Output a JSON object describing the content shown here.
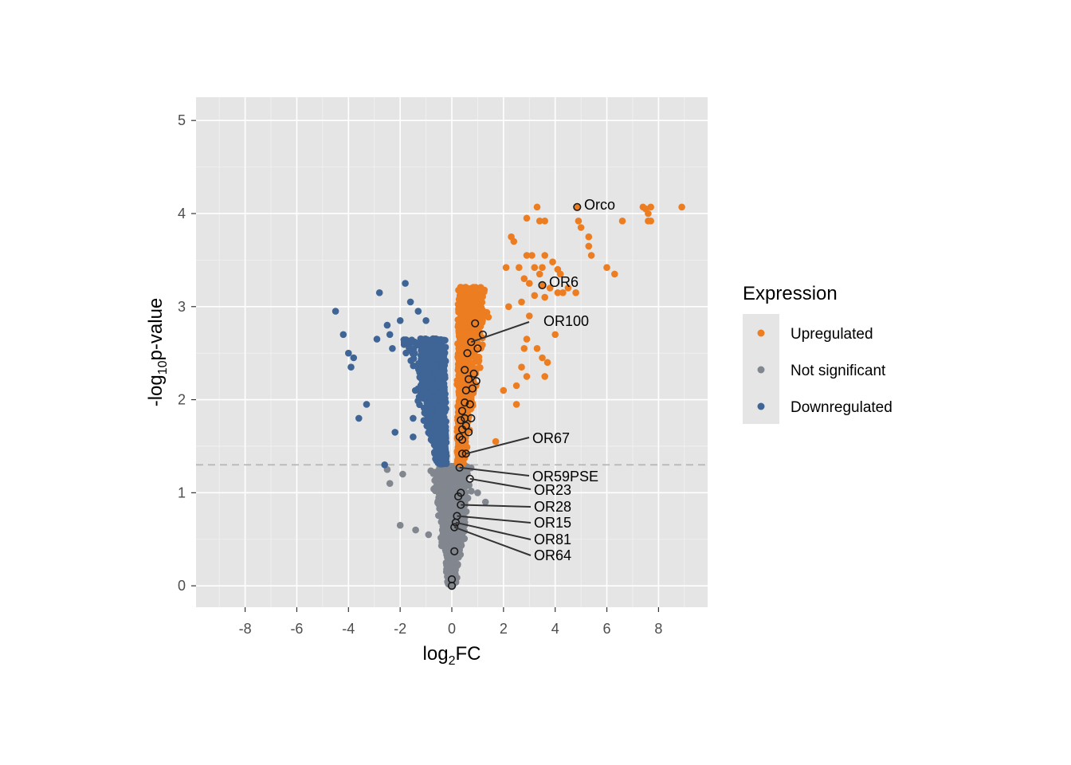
{
  "chart_data": {
    "type": "scatter",
    "title": "",
    "xlabel": {
      "base": "log",
      "sub": "2",
      "rest": "FC"
    },
    "ylabel": {
      "base": "-log",
      "sub": "10",
      "rest": "p-value"
    },
    "xlim": [
      -9.9,
      9.9
    ],
    "ylim": [
      -0.23,
      5.25
    ],
    "x_ticks": [
      -8,
      -6,
      -4,
      -2,
      0,
      2,
      4,
      6,
      8
    ],
    "x_tick_labels": [
      "-8",
      "-6",
      "-4",
      "-2",
      "0",
      "2",
      "4",
      "6",
      "8"
    ],
    "y_ticks": [
      0,
      1,
      2,
      3,
      4,
      5
    ],
    "y_tick_labels": [
      "0",
      "1",
      "2",
      "3",
      "4",
      "5"
    ],
    "grid": true,
    "threshold_line": {
      "y": 1.3,
      "style": "dashed"
    },
    "legend": {
      "title": "Expression",
      "position": "right",
      "entries": [
        {
          "label": "Upregulated",
          "color": "#ED7D21"
        },
        {
          "label": "Not significant",
          "color": "#82878F"
        },
        {
          "label": "Downregulated",
          "color": "#3F6597"
        }
      ]
    },
    "series": [
      {
        "name": "Upregulated",
        "color": "#ED7D21",
        "points": [
          [
            3.3,
            4.07
          ],
          [
            2.9,
            3.95
          ],
          [
            3.4,
            3.92
          ],
          [
            3.6,
            3.92
          ],
          [
            2.3,
            3.75
          ],
          [
            2.4,
            3.7
          ],
          [
            2.9,
            3.55
          ],
          [
            3.1,
            3.55
          ],
          [
            3.6,
            3.55
          ],
          [
            3.9,
            3.48
          ],
          [
            2.1,
            3.42
          ],
          [
            2.6,
            3.42
          ],
          [
            3.2,
            3.42
          ],
          [
            3.5,
            3.42
          ],
          [
            4.1,
            3.4
          ],
          [
            4.2,
            3.35
          ],
          [
            3.4,
            3.35
          ],
          [
            2.8,
            3.3
          ],
          [
            3.0,
            3.25
          ],
          [
            3.8,
            3.2
          ],
          [
            4.3,
            3.15
          ],
          [
            4.1,
            3.15
          ],
          [
            3.6,
            3.1
          ],
          [
            3.2,
            3.12
          ],
          [
            2.7,
            3.05
          ],
          [
            2.2,
            3.0
          ],
          [
            3.0,
            2.9
          ],
          [
            4.0,
            2.7
          ],
          [
            2.9,
            2.65
          ],
          [
            3.3,
            2.55
          ],
          [
            3.5,
            2.45
          ],
          [
            3.7,
            2.4
          ],
          [
            2.8,
            2.55
          ],
          [
            2.7,
            2.35
          ],
          [
            2.9,
            2.25
          ],
          [
            3.6,
            2.25
          ],
          [
            2.5,
            2.15
          ],
          [
            2.0,
            2.1
          ],
          [
            2.5,
            1.95
          ],
          [
            1.7,
            1.55
          ],
          [
            5.3,
            3.75
          ],
          [
            5.3,
            3.65
          ],
          [
            5.4,
            3.55
          ],
          [
            6.0,
            3.42
          ],
          [
            6.3,
            3.35
          ],
          [
            6.6,
            3.92
          ],
          [
            5.0,
            3.85
          ],
          [
            4.9,
            3.92
          ],
          [
            7.4,
            4.07
          ],
          [
            7.5,
            4.05
          ],
          [
            7.6,
            4.0
          ],
          [
            7.7,
            4.07
          ],
          [
            7.6,
            3.92
          ],
          [
            7.7,
            3.92
          ],
          [
            8.9,
            4.07
          ],
          [
            4.8,
            3.15
          ],
          [
            4.5,
            3.2
          ]
        ],
        "cloud": {
          "x_range": [
            0.18,
            2.6
          ],
          "y_range": [
            1.3,
            3.3
          ]
        }
      },
      {
        "name": "Not significant",
        "color": "#82878F",
        "points": [
          [
            -2.4,
            1.1
          ],
          [
            -2.0,
            0.65
          ],
          [
            -1.4,
            0.6
          ],
          [
            -1.9,
            1.2
          ],
          [
            -2.5,
            1.25
          ],
          [
            -0.9,
            0.55
          ],
          [
            1.3,
            0.9
          ],
          [
            1.0,
            1.0
          ]
        ],
        "cloud": {
          "x_range": [
            -1.5,
            1.5
          ],
          "y_range": [
            0,
            1.3
          ]
        }
      },
      {
        "name": "Downregulated",
        "color": "#3F6597",
        "points": [
          [
            -4.5,
            2.95
          ],
          [
            -4.2,
            2.7
          ],
          [
            -1.8,
            3.25
          ],
          [
            -2.8,
            3.15
          ],
          [
            -1.6,
            3.05
          ],
          [
            -3.8,
            2.45
          ],
          [
            -3.6,
            1.8
          ],
          [
            -3.3,
            1.95
          ],
          [
            -1.5,
            1.8
          ],
          [
            -1.5,
            1.6
          ],
          [
            -2.2,
            1.65
          ],
          [
            -2.6,
            1.3
          ],
          [
            -4.0,
            2.5
          ],
          [
            -3.9,
            2.35
          ],
          [
            -2.9,
            2.65
          ],
          [
            -2.4,
            2.7
          ],
          [
            -2.5,
            2.8
          ],
          [
            -2.3,
            2.55
          ],
          [
            -2.0,
            2.85
          ],
          [
            -1.3,
            2.95
          ],
          [
            -1.0,
            2.85
          ]
        ],
        "cloud": {
          "x_range": [
            -3.2,
            -0.18
          ],
          "y_range": [
            1.3,
            3.0
          ]
        }
      }
    ],
    "highlighted_genes": [
      {
        "gene": "Orco",
        "x": 4.85,
        "y": 4.07,
        "fill": "#ED7D21"
      },
      {
        "gene": "OR6",
        "x": 3.5,
        "y": 3.23,
        "fill": "#ED7D21"
      },
      {
        "gene": "OR100",
        "x": 0.75,
        "y": 2.62
      },
      {
        "gene": "OR67",
        "x": 0.55,
        "y": 1.42
      },
      {
        "gene": "OR59PSE",
        "x": 0.3,
        "y": 1.27
      },
      {
        "gene": "OR23",
        "x": 0.7,
        "y": 1.15
      },
      {
        "gene": "OR28",
        "x": 0.35,
        "y": 0.87
      },
      {
        "gene": "OR15",
        "x": 0.2,
        "y": 0.75
      },
      {
        "gene": "OR81",
        "x": 0.15,
        "y": 0.68
      },
      {
        "gene": "OR64",
        "x": 0.1,
        "y": 0.63
      }
    ],
    "highlighted_unlabeled": [
      [
        0.9,
        2.82
      ],
      [
        1.2,
        2.7
      ],
      [
        1.0,
        2.55
      ],
      [
        0.6,
        2.5
      ],
      [
        0.5,
        2.32
      ],
      [
        0.65,
        2.22
      ],
      [
        0.85,
        2.28
      ],
      [
        0.95,
        2.2
      ],
      [
        0.55,
        2.1
      ],
      [
        0.8,
        2.12
      ],
      [
        0.5,
        1.97
      ],
      [
        0.7,
        1.95
      ],
      [
        0.4,
        1.88
      ],
      [
        0.5,
        1.8
      ],
      [
        0.75,
        1.8
      ],
      [
        0.35,
        1.78
      ],
      [
        0.55,
        1.72
      ],
      [
        0.65,
        1.65
      ],
      [
        0.4,
        1.68
      ],
      [
        0.3,
        1.6
      ],
      [
        0.4,
        1.57
      ],
      [
        0.4,
        1.42
      ],
      [
        0.35,
        1.0
      ],
      [
        0.25,
        0.96
      ],
      [
        0.1,
        0.37
      ],
      [
        0.0,
        0.07
      ],
      [
        0.0,
        0.0
      ]
    ]
  }
}
